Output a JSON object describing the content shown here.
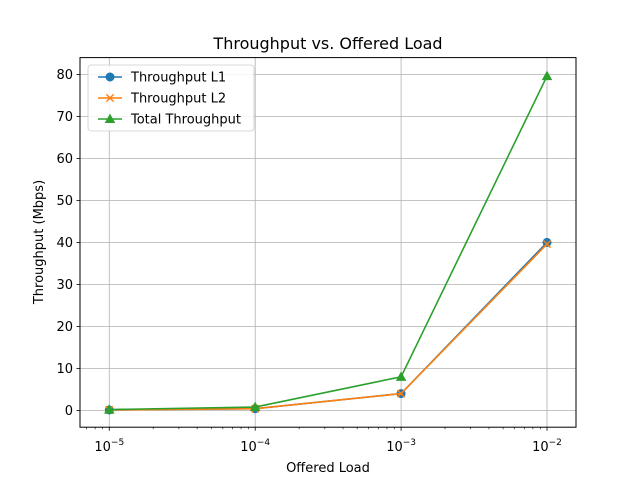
{
  "chart_data": {
    "type": "line",
    "title": "Throughput vs. Offered Load",
    "xlabel": "Offered Load",
    "ylabel": "Throughput (Mbps)",
    "xscale": "log",
    "x": [
      1e-05,
      0.0001,
      0.001,
      0.01
    ],
    "xticks": [
      {
        "value": 1e-05,
        "base": "10",
        "exp": "−5"
      },
      {
        "value": 0.0001,
        "base": "10",
        "exp": "−4"
      },
      {
        "value": 0.001,
        "base": "10",
        "exp": "−3"
      },
      {
        "value": 0.01,
        "base": "10",
        "exp": "−2"
      }
    ],
    "xlim": [
      6.3e-06,
      0.0158
    ],
    "ylim": [
      -4,
      84
    ],
    "yticks": [
      0,
      10,
      20,
      30,
      40,
      50,
      60,
      70,
      80
    ],
    "grid": true,
    "legend_position": "top-left",
    "series": [
      {
        "name": "Throughput L1",
        "values": [
          0.1,
          0.4,
          4,
          40
        ],
        "color": "#1f77b4",
        "marker": "circle"
      },
      {
        "name": "Throughput L2",
        "values": [
          0.1,
          0.4,
          4,
          39.6
        ],
        "color": "#ff7f0e",
        "marker": "x"
      },
      {
        "name": "Total Throughput",
        "values": [
          0.2,
          0.8,
          8,
          79.6
        ],
        "color": "#2ca02c",
        "marker": "triangle"
      }
    ]
  }
}
